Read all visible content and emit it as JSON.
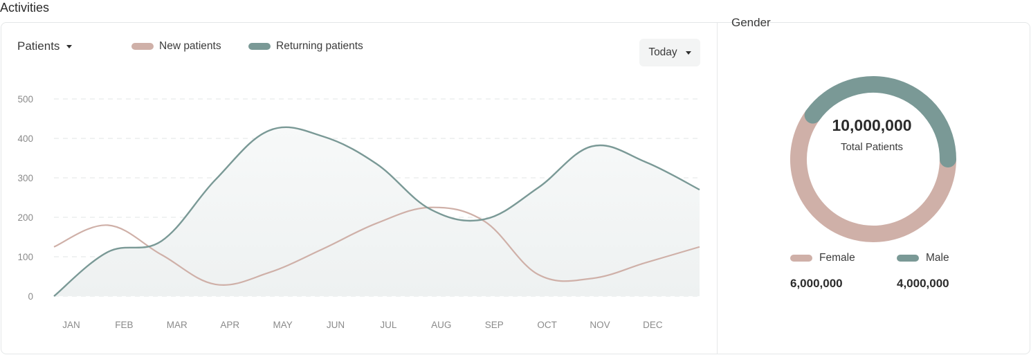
{
  "section_title": "Activities",
  "metric_select": {
    "label": "Patients",
    "icon": "chevron-down-icon"
  },
  "period_select": {
    "label": "Today",
    "icon": "chevron-down-icon"
  },
  "colors": {
    "new": "#cfb0a8",
    "returning": "#7a9996",
    "area": "#eef1f1",
    "grid": "#e2e5e6",
    "tick": "#8a8a8a"
  },
  "chart_data": {
    "type": "line",
    "series": [
      {
        "name": "New patients",
        "color": "#cfb0a8",
        "x": [
          0,
          1,
          2,
          3,
          4,
          5,
          6,
          7,
          8,
          9,
          10,
          11,
          12
        ],
        "values": [
          125,
          180,
          105,
          30,
          60,
          120,
          185,
          225,
          190,
          55,
          45,
          85,
          125
        ]
      },
      {
        "name": "Returning patients",
        "color": "#7a9996",
        "x": [
          0,
          1,
          2,
          3,
          4,
          5,
          6,
          7,
          8,
          9,
          10,
          11,
          12
        ],
        "values": [
          0,
          112,
          140,
          295,
          420,
          405,
          335,
          220,
          195,
          275,
          380,
          340,
          270
        ]
      }
    ],
    "categories": [
      "JAN",
      "FEB",
      "MAR",
      "APR",
      "MAY",
      "JUN",
      "JUL",
      "AUG",
      "SEP",
      "OCT",
      "NOV",
      "DEC"
    ],
    "yticks": [
      "0",
      "100",
      "200",
      "300",
      "400",
      "500"
    ],
    "ylim": [
      0,
      500
    ],
    "grid": true,
    "legend_placement": "top-left"
  },
  "gender": {
    "title": "Gender",
    "total_value": "10,000,000",
    "total_caption": "Total Patients",
    "segments": [
      {
        "name": "Female",
        "value": "6,000,000",
        "fraction": 0.6,
        "color": "#cfb0a8"
      },
      {
        "name": "Male",
        "value": "4,000,000",
        "fraction": 0.4,
        "color": "#7a9996"
      }
    ]
  }
}
